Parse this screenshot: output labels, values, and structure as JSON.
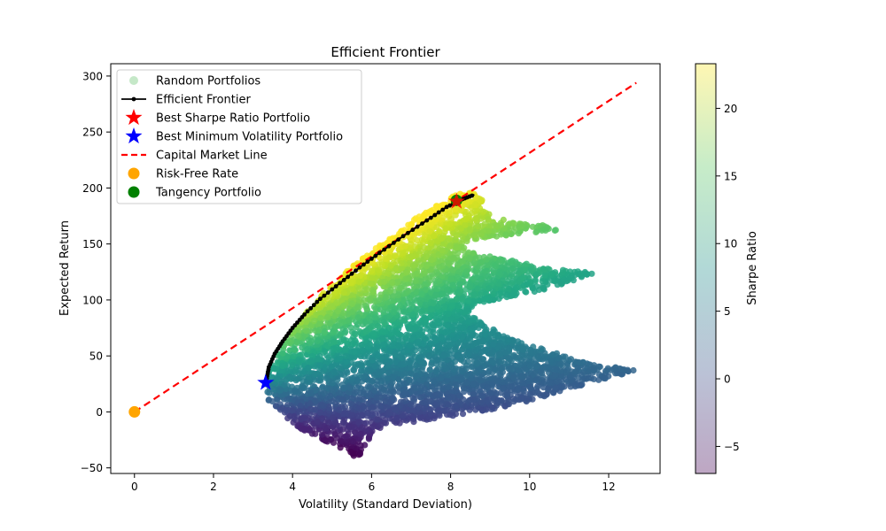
{
  "chart_data": {
    "type": "scatter",
    "title": "Efficient Frontier",
    "xlabel": "Volatility (Standard Deviation)",
    "ylabel": "Expected Return",
    "xlim": [
      -0.6,
      13.3
    ],
    "ylim": [
      -55,
      311
    ],
    "xticks": [
      0,
      2,
      4,
      6,
      8,
      10,
      12
    ],
    "yticks": [
      -50,
      0,
      50,
      100,
      150,
      200,
      250,
      300
    ],
    "grid": false,
    "legend_position": "upper-left",
    "legend": [
      {
        "label": "Random Portfolios",
        "marker": "circle-faint",
        "color": "#9fd8a4"
      },
      {
        "label": "Efficient Frontier",
        "marker": "line-dot",
        "color": "#000000"
      },
      {
        "label": "Best Sharpe Ratio Portfolio",
        "marker": "star",
        "color": "#ff0000"
      },
      {
        "label": "Best Minimum Volatility Portfolio",
        "marker": "star",
        "color": "#0000ff"
      },
      {
        "label": "Capital Market Line",
        "marker": "dashed-line",
        "color": "#ff0000"
      },
      {
        "label": "Risk-Free Rate",
        "marker": "circle",
        "color": "#ffa500"
      },
      {
        "label": "Tangency Portfolio",
        "marker": "circle",
        "color": "#008000"
      }
    ],
    "colorbar": {
      "label": "Sharpe Ratio",
      "range": [
        -7,
        23.3
      ],
      "ticks": [
        -5,
        0,
        5,
        10,
        15,
        20
      ],
      "colormap": "viridis"
    },
    "random_portfolios_region": {
      "outline": [
        [
          3.35,
          27
        ],
        [
          3.3,
          15
        ],
        [
          3.5,
          5
        ],
        [
          4.2,
          -15
        ],
        [
          5.2,
          -33
        ],
        [
          5.7,
          -42
        ],
        [
          5.75,
          -35
        ],
        [
          6.1,
          -15
        ],
        [
          7.3,
          -8
        ],
        [
          9.5,
          5
        ],
        [
          12.7,
          37
        ],
        [
          11.5,
          44
        ],
        [
          9.5,
          65
        ],
        [
          8.4,
          88
        ],
        [
          8.6,
          96
        ],
        [
          10.5,
          110
        ],
        [
          11.7,
          124
        ],
        [
          10.5,
          128
        ],
        [
          9.7,
          134
        ],
        [
          8.3,
          145
        ],
        [
          8.7,
          155
        ],
        [
          10.7,
          162
        ],
        [
          10.6,
          167
        ],
        [
          9.5,
          169
        ],
        [
          8.7,
          183
        ],
        [
          8.9,
          188
        ],
        [
          8.6,
          196
        ],
        [
          8.2,
          195
        ],
        [
          7.4,
          180
        ],
        [
          6.6,
          160
        ],
        [
          5.5,
          130
        ],
        [
          4.6,
          100
        ],
        [
          4.0,
          73
        ],
        [
          3.6,
          50
        ],
        [
          3.4,
          37
        ]
      ],
      "sharpe_min": -7,
      "sharpe_max": 23.3
    },
    "efficient_frontier": {
      "x": [
        3.35,
        3.4,
        3.55,
        3.75,
        4.0,
        4.3,
        4.7,
        5.2,
        5.7,
        6.2,
        6.8,
        7.4,
        7.9,
        8.3,
        8.6
      ],
      "y": [
        30,
        40,
        52,
        63,
        75,
        87,
        101,
        115,
        129,
        142,
        157,
        171,
        183,
        190,
        194
      ]
    },
    "best_sharpe_portfolio": {
      "x": 8.15,
      "y": 188
    },
    "min_volatility_portfolio": {
      "x": 3.32,
      "y": 26
    },
    "capital_market_line": {
      "x": [
        0,
        12.7
      ],
      "y": [
        0,
        294
      ]
    },
    "risk_free_rate": {
      "x": 0,
      "y": 0
    },
    "tangency_portfolio": {
      "x": 8.15,
      "y": 189
    }
  }
}
